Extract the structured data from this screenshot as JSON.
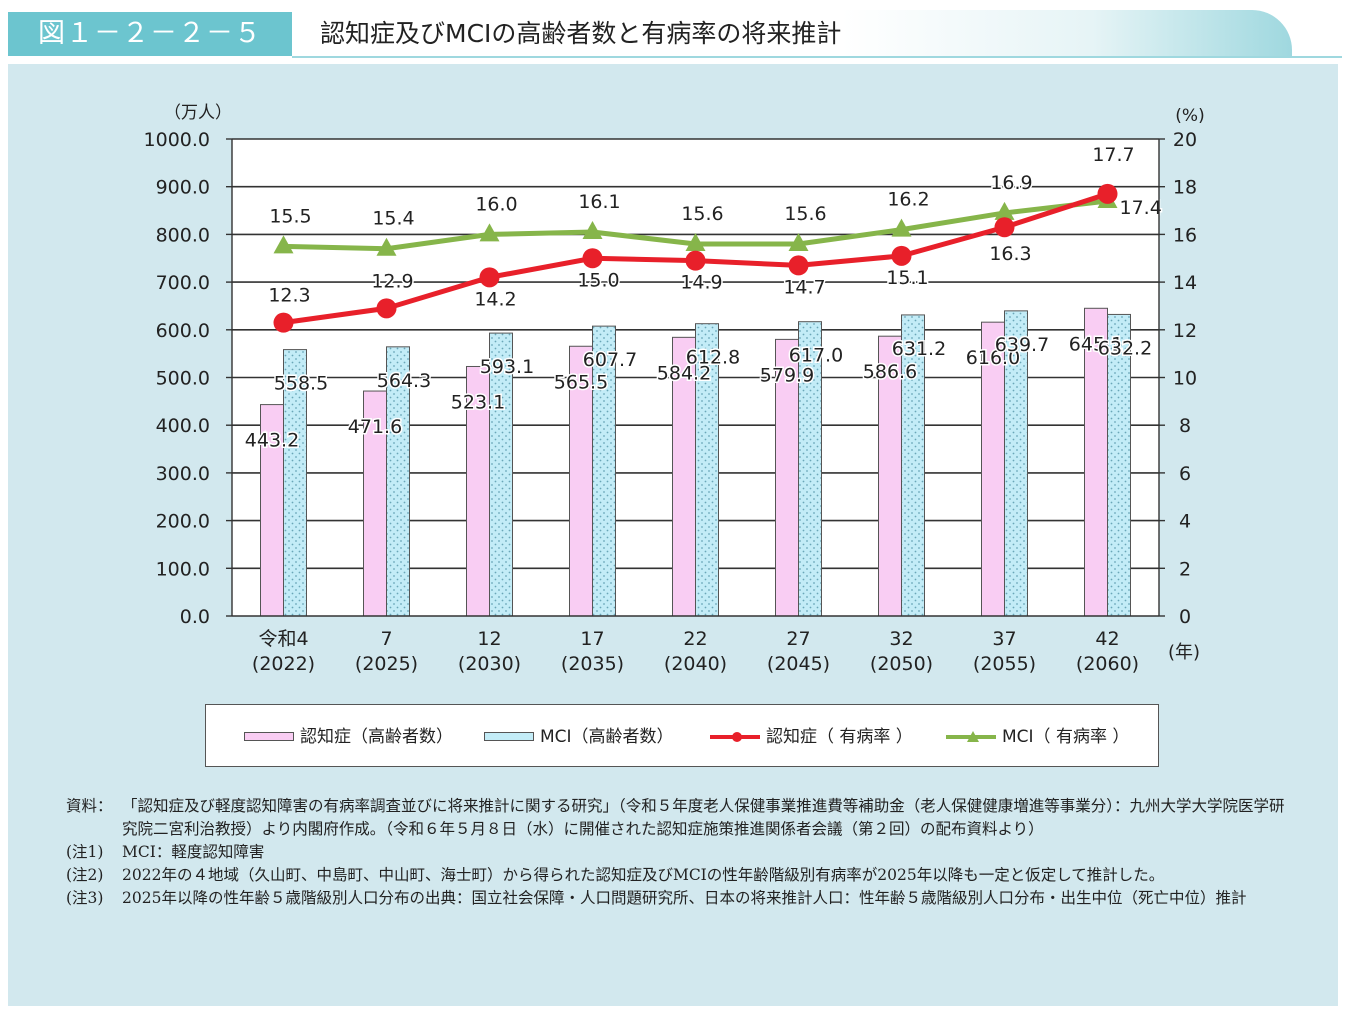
{
  "header": {
    "figure_label": "図１－２－２－５",
    "title": "認知症及びMCIの高齢者数と有病率の将来推計"
  },
  "chart_data": {
    "type": "bar+line",
    "left_axis_unit": "（万人）",
    "right_axis_unit": "(%)",
    "x_unit": "(年)",
    "left_ticks": [
      "0.0",
      "100.0",
      "200.0",
      "300.0",
      "400.0",
      "500.0",
      "600.0",
      "700.0",
      "800.0",
      "900.0",
      "1000.0"
    ],
    "right_ticks": [
      "0",
      "2",
      "4",
      "6",
      "8",
      "10",
      "12",
      "14",
      "16",
      "18",
      "20"
    ],
    "ylim_left": [
      0,
      1000
    ],
    "ylim_right": [
      0,
      20
    ],
    "categories": [
      {
        "top": "令和4",
        "bottom": "(2022)"
      },
      {
        "top": "7",
        "bottom": "(2025)"
      },
      {
        "top": "12",
        "bottom": "(2030)"
      },
      {
        "top": "17",
        "bottom": "(2035)"
      },
      {
        "top": "22",
        "bottom": "(2040)"
      },
      {
        "top": "27",
        "bottom": "(2045)"
      },
      {
        "top": "32",
        "bottom": "(2050)"
      },
      {
        "top": "37",
        "bottom": "(2055)"
      },
      {
        "top": "42",
        "bottom": "(2060)"
      }
    ],
    "series": [
      {
        "name": "認知症（高齢者数）",
        "kind": "bar",
        "axis": "left",
        "color": "#f9cdf3",
        "values": [
          443.2,
          471.6,
          523.1,
          565.5,
          584.2,
          579.9,
          586.6,
          616.0,
          645.1
        ],
        "labels": [
          "443.2",
          "471.6",
          "523.1",
          "565.5",
          "584.2",
          "579.9",
          "586.6",
          "616.0",
          "645.1"
        ]
      },
      {
        "name": "MCI（高齢者数）",
        "kind": "bar",
        "axis": "left",
        "color": "#c3ecf7",
        "values": [
          558.5,
          564.3,
          593.1,
          607.7,
          612.8,
          617.0,
          631.2,
          639.7,
          632.2
        ],
        "labels": [
          "558.5",
          "564.3",
          "593.1",
          "607.7",
          "612.8",
          "617.0",
          "631.2",
          "639.7",
          "632.2"
        ]
      },
      {
        "name": "認知症（ 有病率 ）",
        "kind": "line",
        "axis": "right",
        "color": "#e8202a",
        "values": [
          12.3,
          12.9,
          14.2,
          15.0,
          14.9,
          14.7,
          15.1,
          16.3,
          17.7
        ],
        "labels": [
          "12.3",
          "12.9",
          "14.2",
          "15.0",
          "14.9",
          "14.7",
          "15.1",
          "16.3",
          "17.7"
        ]
      },
      {
        "name": "MCI（ 有病率 ）",
        "kind": "line",
        "axis": "right",
        "color": "#86b54a",
        "values": [
          15.5,
          15.4,
          16.0,
          16.1,
          15.6,
          15.6,
          16.2,
          16.9,
          17.4
        ],
        "labels": [
          "15.5",
          "15.4",
          "16.0",
          "16.1",
          "15.6",
          "15.6",
          "16.2",
          "16.9",
          "17.4"
        ]
      }
    ]
  },
  "notes": {
    "source_tag": "資料：",
    "source_text": "「認知症及び軽度認知障害の有病率調査並びに将来推計に関する研究」（令和５年度老人保健事業推進費等補助金（老人保健健康増進等事業分）：九州大学大学院医学研究院二宮利治教授）より内閣府作成。（令和６年５月８日（水）に開催された認知症施策推進関係者会議（第２回）の配布資料より）",
    "items": [
      {
        "tag": "(注1)",
        "text": "MCI：軽度認知障害"
      },
      {
        "tag": "(注2)",
        "text": "2022年の４地域（久山町、中島町、中山町、海士町）から得られた認知症及びMCIの性年齢階級別有病率が2025年以降も一定と仮定して推計した。"
      },
      {
        "tag": "(注3)",
        "text": "2025年以降の性年齢５歳階級別人口分布の出典：国立社会保障・人口問題研究所、日本の将来推計人口：性年齢５歳階級別人口分布・出生中位（死亡中位）推計"
      }
    ]
  }
}
